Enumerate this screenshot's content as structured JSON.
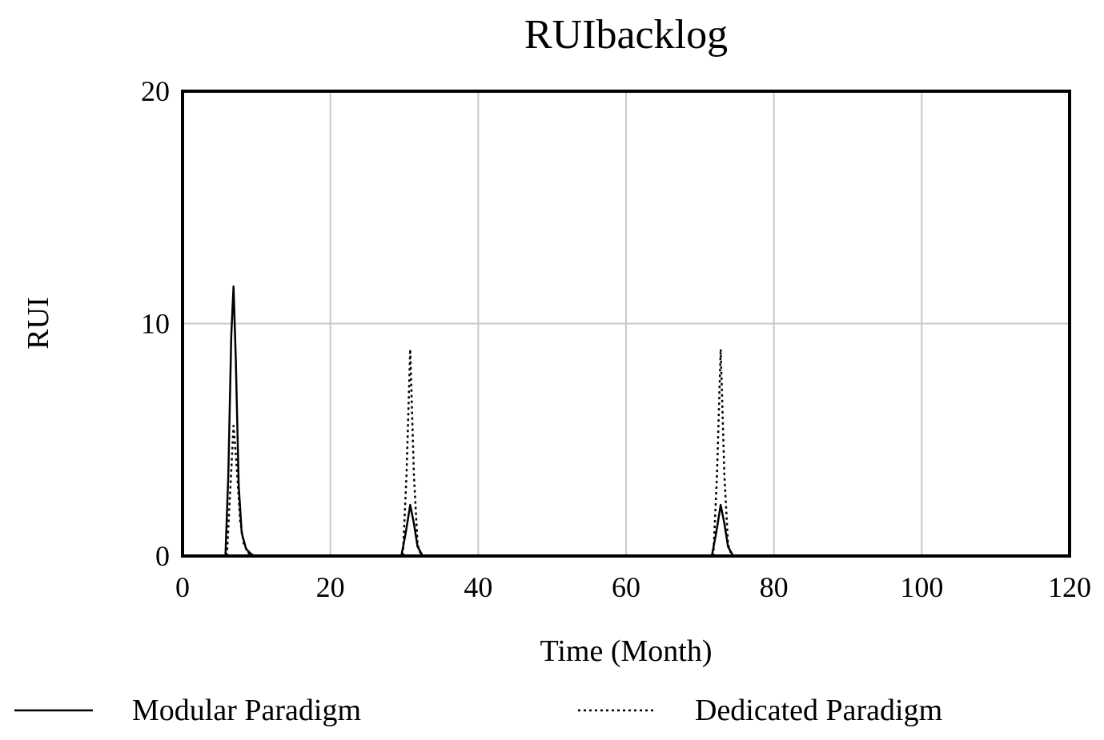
{
  "chart_data": {
    "type": "line",
    "title": "RUIbacklog",
    "xlabel": "Time (Month)",
    "ylabel": "RUI",
    "xlim": [
      0,
      120
    ],
    "ylim": [
      0,
      20
    ],
    "xticks": [
      "0",
      "20",
      "40",
      "60",
      "80",
      "100",
      "120"
    ],
    "yticks": [
      "0",
      "10",
      "20"
    ],
    "grid": true,
    "legend_position": "bottom",
    "series": [
      {
        "name": "Modular Paradigm",
        "style": "solid",
        "color": "#000000",
        "points": [
          [
            0,
            0
          ],
          [
            5.8,
            0
          ],
          [
            6.2,
            3.5
          ],
          [
            6.6,
            9.5
          ],
          [
            6.9,
            11.6
          ],
          [
            7.2,
            8.5
          ],
          [
            7.6,
            3.0
          ],
          [
            8.0,
            1.0
          ],
          [
            8.6,
            0.3
          ],
          [
            9.4,
            0.05
          ],
          [
            10,
            0
          ],
          [
            29.6,
            0
          ],
          [
            30.2,
            1.0
          ],
          [
            30.8,
            2.2
          ],
          [
            31.3,
            1.4
          ],
          [
            31.8,
            0.4
          ],
          [
            32.5,
            0
          ],
          [
            71.6,
            0
          ],
          [
            72.2,
            1.0
          ],
          [
            72.8,
            2.2
          ],
          [
            73.3,
            1.4
          ],
          [
            73.8,
            0.4
          ],
          [
            74.5,
            0
          ],
          [
            120,
            0
          ]
        ]
      },
      {
        "name": "Dedicated Paradigm",
        "style": "dotted",
        "color": "#000000",
        "points": [
          [
            0,
            0
          ],
          [
            6.0,
            0
          ],
          [
            6.4,
            2.5
          ],
          [
            6.9,
            5.6
          ],
          [
            7.3,
            4.0
          ],
          [
            7.8,
            1.5
          ],
          [
            8.3,
            0.5
          ],
          [
            9.0,
            0.1
          ],
          [
            9.8,
            0
          ],
          [
            29.8,
            0
          ],
          [
            30.3,
            3.5
          ],
          [
            30.8,
            8.9
          ],
          [
            31.3,
            3.5
          ],
          [
            31.8,
            0.5
          ],
          [
            32.3,
            0
          ],
          [
            71.8,
            0
          ],
          [
            72.3,
            3.5
          ],
          [
            72.8,
            8.9
          ],
          [
            73.3,
            3.5
          ],
          [
            73.8,
            0.5
          ],
          [
            74.3,
            0
          ],
          [
            120,
            0
          ]
        ]
      }
    ]
  }
}
